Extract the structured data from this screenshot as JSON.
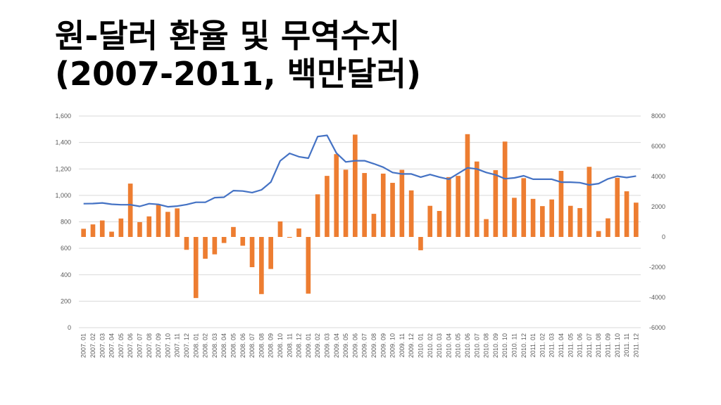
{
  "slide": {
    "title_line1": "원-달러 환율 및 무역수지",
    "title_line2": "(2007-2011, 백만달러)"
  },
  "colors": {
    "exchange_line": "#4472C4",
    "trade_bars": "#ED7D31",
    "gridline": "#D9D9D9",
    "tick_text": "#595959"
  },
  "chart_data": {
    "type": "bar",
    "grid": true,
    "legend": "none",
    "categories": [
      "2007. 01",
      "2007. 02",
      "2007. 03",
      "2007. 04",
      "2007. 05",
      "2007. 06",
      "2007. 07",
      "2007. 08",
      "2007. 09",
      "2007. 10",
      "2007. 11",
      "2007. 12",
      "2008. 01",
      "2008. 02",
      "2008. 03",
      "2008. 04",
      "2008. 05",
      "2008. 06",
      "2008. 07",
      "2008. 08",
      "2008. 09",
      "2008. 10",
      "2008. 11",
      "2008. 12",
      "2009. 01",
      "2009. 02",
      "2009. 03",
      "2009. 04",
      "2009. 05",
      "2009. 06",
      "2009. 07",
      "2009. 08",
      "2009. 09",
      "2009. 10",
      "2009. 11",
      "2009. 12",
      "2010. 01",
      "2010. 02",
      "2010. 03",
      "2010. 04",
      "2010. 05",
      "2010. 06",
      "2010. 07",
      "2010. 08",
      "2010. 09",
      "2010. 10",
      "2010. 11",
      "2010. 12",
      "2011. 01",
      "2011. 02",
      "2011. 03",
      "2011. 04",
      "2011. 05",
      "2011. 06",
      "2011. 07",
      "2011. 08",
      "2011. 09",
      "2011. 10",
      "2011. 11",
      "2011. 12"
    ],
    "series": [
      {
        "type": "bar",
        "axis": "right",
        "values": [
          540,
          830,
          1090,
          350,
          1220,
          3530,
          980,
          1360,
          2120,
          1660,
          1890,
          -850,
          -4040,
          -1440,
          -1150,
          -400,
          660,
          -580,
          -2000,
          -3780,
          -2120,
          1030,
          -50,
          560,
          -3750,
          2820,
          4040,
          5480,
          4450,
          6770,
          4230,
          1530,
          4190,
          3580,
          4440,
          3080,
          -880,
          2060,
          1720,
          3960,
          4040,
          6800,
          4990,
          1180,
          4420,
          6310,
          2590,
          3890,
          2520,
          2040,
          2480,
          4370,
          2060,
          1910,
          4640,
          390,
          1230,
          3910,
          3020,
          2270
        ]
      },
      {
        "type": "line",
        "axis": "left",
        "values": [
          937,
          938,
          943,
          933,
          929,
          929,
          917,
          937,
          932,
          914,
          919,
          931,
          948,
          948,
          983,
          986,
          1036,
          1033,
          1021,
          1042,
          1101,
          1261,
          1318,
          1292,
          1281,
          1445,
          1454,
          1320,
          1253,
          1262,
          1262,
          1239,
          1213,
          1173,
          1162,
          1162,
          1138,
          1158,
          1138,
          1122,
          1165,
          1208,
          1200,
          1173,
          1155,
          1126,
          1132,
          1148,
          1122,
          1122,
          1122,
          1100,
          1100,
          1096,
          1079,
          1089,
          1125,
          1145,
          1135,
          1146
        ]
      }
    ],
    "y_left": {
      "ylim": [
        0,
        1600
      ],
      "ticks": [
        "0",
        "200",
        "400",
        "600",
        "800",
        "1,000",
        "1,200",
        "1,400",
        "1,600"
      ]
    },
    "y_right": {
      "ylim": [
        -6000,
        8000
      ],
      "ticks": [
        "-6000",
        "-4000",
        "-2000",
        "0",
        "2000",
        "4000",
        "6000",
        "8000"
      ]
    }
  }
}
